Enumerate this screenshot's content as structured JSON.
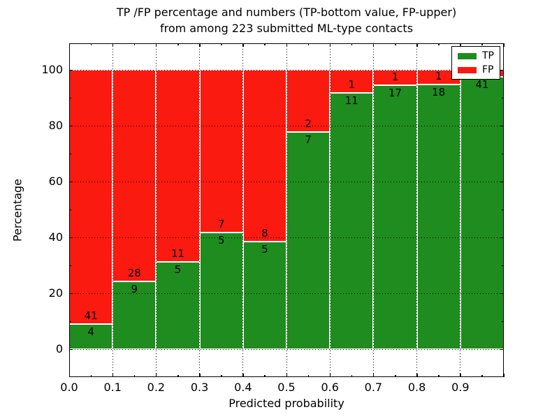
{
  "figure": {
    "title_line1": "TP /FP percentage and numbers (TP-bottom value, FP-upper)",
    "title_line2": "from among 223 submitted ML-type contacts",
    "xlabel": "Predicted probability",
    "ylabel": "Percentage",
    "total_contacts": 223
  },
  "legend": {
    "position": "upper right",
    "items": [
      {
        "label": "TP",
        "color": "#1f8c1f"
      },
      {
        "label": "FP",
        "color": "#fa1a10"
      }
    ]
  },
  "chart_data": {
    "type": "bar",
    "stacked": true,
    "normalized_to_percent": true,
    "title": "TP /FP percentage and numbers (TP-bottom value, FP-upper) from among 223 submitted ML-type contacts",
    "xlabel": "Predicted probability",
    "ylabel": "Percentage",
    "categories": [
      "0.0-0.1",
      "0.1-0.2",
      "0.2-0.3",
      "0.3-0.4",
      "0.4-0.5",
      "0.5-0.6",
      "0.6-0.7",
      "0.7-0.8",
      "0.8-0.9",
      "0.9-1.0"
    ],
    "bin_starts": [
      0.0,
      0.1,
      0.2,
      0.3,
      0.4,
      0.5,
      0.6,
      0.7,
      0.8,
      0.9
    ],
    "bin_width": 0.1,
    "series": [
      {
        "name": "TP",
        "color": "#1f8c1f",
        "counts": [
          4,
          9,
          5,
          5,
          5,
          7,
          11,
          17,
          18,
          41
        ]
      },
      {
        "name": "FP",
        "color": "#fa1a10",
        "counts": [
          41,
          28,
          11,
          7,
          8,
          2,
          1,
          1,
          1,
          1
        ]
      }
    ],
    "tp_percent": [
      8.89,
      24.32,
      31.25,
      41.67,
      38.46,
      77.78,
      91.67,
      94.44,
      94.74,
      97.62
    ],
    "x_tick_labels": [
      "0.0",
      "0.1",
      "0.2",
      "0.3",
      "0.4",
      "0.5",
      "0.6",
      "0.7",
      "0.8",
      "0.9"
    ],
    "y_ticks": [
      0,
      20,
      40,
      60,
      80,
      100
    ],
    "xlim": [
      0.0,
      1.0
    ],
    "ylim": [
      -10,
      109.5
    ],
    "grid": true,
    "grid_style": "dotted",
    "legend_position": "upper right",
    "bar_edge_color": "#ffffff",
    "background_color": "#ffffff"
  }
}
